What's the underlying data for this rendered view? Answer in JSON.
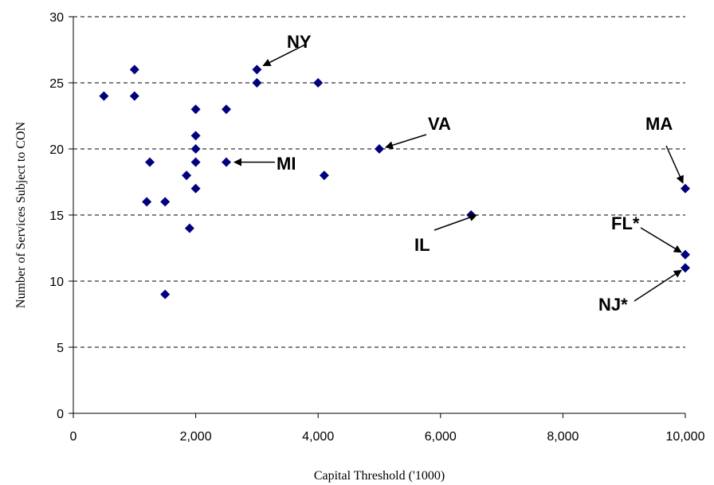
{
  "chart_data": {
    "type": "scatter",
    "title": "",
    "xlabel": "Capital Threshold ('1000)",
    "ylabel": "Number of Services Subject to CON",
    "xlim": [
      0,
      10000
    ],
    "ylim": [
      0,
      30
    ],
    "xticks": [
      0,
      2000,
      4000,
      6000,
      8000,
      10000
    ],
    "xtick_labels": [
      "0",
      "2,000",
      "4,000",
      "6,000",
      "8,000",
      "10,000"
    ],
    "yticks": [
      0,
      5,
      10,
      15,
      20,
      25,
      30
    ],
    "ytick_labels": [
      "0",
      "5",
      "10",
      "15",
      "20",
      "25",
      "30"
    ],
    "grid": "horizontal dashed",
    "marker_color": "#00007F",
    "points": [
      {
        "x": 500,
        "y": 24
      },
      {
        "x": 1000,
        "y": 26
      },
      {
        "x": 1000,
        "y": 24
      },
      {
        "x": 1250,
        "y": 19
      },
      {
        "x": 1200,
        "y": 16
      },
      {
        "x": 1500,
        "y": 16
      },
      {
        "x": 1500,
        "y": 9
      },
      {
        "x": 1850,
        "y": 18
      },
      {
        "x": 1900,
        "y": 14
      },
      {
        "x": 2000,
        "y": 23
      },
      {
        "x": 2000,
        "y": 21
      },
      {
        "x": 2000,
        "y": 20
      },
      {
        "x": 2000,
        "y": 19
      },
      {
        "x": 2000,
        "y": 17
      },
      {
        "x": 2500,
        "y": 23
      },
      {
        "x": 2500,
        "y": 19
      },
      {
        "x": 3000,
        "y": 26
      },
      {
        "x": 3000,
        "y": 25
      },
      {
        "x": 4000,
        "y": 25
      },
      {
        "x": 4100,
        "y": 18
      },
      {
        "x": 5000,
        "y": 20
      },
      {
        "x": 6500,
        "y": 15
      },
      {
        "x": 10000,
        "y": 17
      },
      {
        "x": 10000,
        "y": 12
      },
      {
        "x": 10000,
        "y": 11
      }
    ],
    "annotations": [
      {
        "label": "NY",
        "x": 3000,
        "y": 26
      },
      {
        "label": "VA",
        "x": 5000,
        "y": 20
      },
      {
        "label": "MI",
        "x": 2500,
        "y": 19
      },
      {
        "label": "IL",
        "x": 6500,
        "y": 15
      },
      {
        "label": "MA",
        "x": 10000,
        "y": 17
      },
      {
        "label": "FL*",
        "x": 10000,
        "y": 12
      },
      {
        "label": "NJ*",
        "x": 10000,
        "y": 11
      }
    ]
  }
}
